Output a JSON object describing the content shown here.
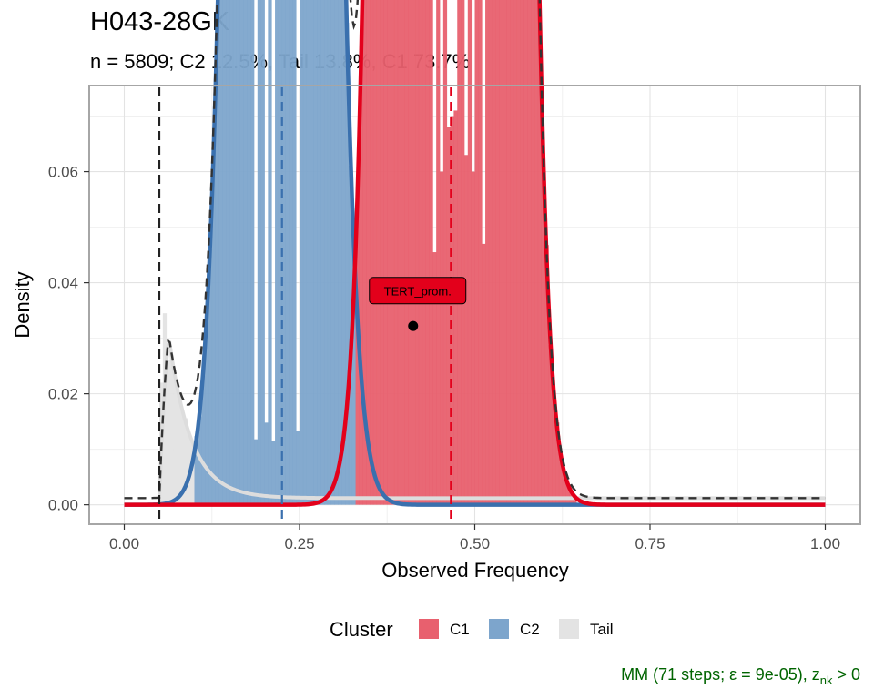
{
  "chart_data": {
    "type": "histogram",
    "title": "H043-28GK",
    "subtitle": "n = 5809; C2 12.5%, Tail 13.8%, C1 73.7%",
    "xlabel": "Observed Frequency",
    "ylabel": "Density",
    "xlim": [
      -0.05,
      1.05
    ],
    "ylim": [
      -0.0035,
      0.0755
    ],
    "x_ticks": [
      0.0,
      0.25,
      0.5,
      0.75,
      1.0
    ],
    "x_tick_labels": [
      "0.00",
      "0.25",
      "0.50",
      "0.75",
      "1.00"
    ],
    "y_ticks": [
      0.0,
      0.02,
      0.04,
      0.06
    ],
    "y_tick_labels": [
      "0.00",
      "0.02",
      "0.04",
      "0.06"
    ],
    "grid": true,
    "legend": {
      "title": "Cluster",
      "position": "bottom",
      "entries": [
        {
          "label": "C1",
          "color": "#E8606E"
        },
        {
          "label": "C2",
          "color": "#7DA5CC"
        },
        {
          "label": "Tail",
          "color": "#E3E3E3"
        }
      ]
    },
    "series": [
      {
        "cluster": "C1",
        "fill_color": "#E8606E",
        "line_color": "#E3001B",
        "mean": 0.466,
        "sd": 0.043,
        "weight": 0.737
      },
      {
        "cluster": "C2",
        "fill_color": "#7DA5CC",
        "line_color": "#3A70AE",
        "mean": 0.225,
        "sd": 0.04,
        "weight": 0.125
      },
      {
        "cluster": "Tail",
        "fill_color": "#E3E3E3",
        "line_color": "#DDDDDD",
        "origin": 0.05,
        "peak_at": 0.06,
        "peak_density": 0.0335,
        "floor": 0.0012,
        "weight": 0.138
      }
    ],
    "histogram": {
      "bin_width": 0.005,
      "bins": [
        {
          "x": 0.0575,
          "y": 0.0345,
          "cluster": "Tail"
        },
        {
          "x": 0.0625,
          "y": 0.026,
          "cluster": "Tail"
        },
        {
          "x": 0.0525,
          "y": 0.022,
          "cluster": "Tail"
        },
        {
          "x": 0.1875,
          "y": 0.0118,
          "cluster": "C2"
        },
        {
          "x": 0.2025,
          "y": 0.0148,
          "cluster": "C2"
        },
        {
          "x": 0.2125,
          "y": 0.0115,
          "cluster": "C2"
        },
        {
          "x": 0.2475,
          "y": 0.0133,
          "cluster": "C2"
        },
        {
          "x": 0.4425,
          "y": 0.0455,
          "cluster": "C1"
        },
        {
          "x": 0.4525,
          "y": 0.06,
          "cluster": "C1"
        },
        {
          "x": 0.4625,
          "y": 0.068,
          "cluster": "C1"
        },
        {
          "x": 0.4675,
          "y": 0.07,
          "cluster": "C1"
        },
        {
          "x": 0.4725,
          "y": 0.071,
          "cluster": "C1"
        },
        {
          "x": 0.4875,
          "y": 0.063,
          "cluster": "C1"
        },
        {
          "x": 0.4975,
          "y": 0.06,
          "cluster": "C1"
        },
        {
          "x": 0.5125,
          "y": 0.047,
          "cluster": "C1"
        }
      ]
    },
    "vlines": [
      {
        "x": 0.05,
        "color": "#222222",
        "style": "dashed"
      },
      {
        "x": 0.225,
        "color": "#3A70AE",
        "style": "dashed"
      },
      {
        "x": 0.466,
        "color": "#E3001B",
        "style": "dashed"
      }
    ],
    "mixture_line": {
      "style": "dashed",
      "color": "#333333"
    },
    "annotation": {
      "text": "TERT_prom.",
      "x": 0.412,
      "y": 0.0322,
      "label_fill": "#E3001B"
    },
    "caption": "MM (71 steps; ε = 9e-05), z",
    "caption_subscript": "nk",
    "caption_suffix": " > 0"
  }
}
